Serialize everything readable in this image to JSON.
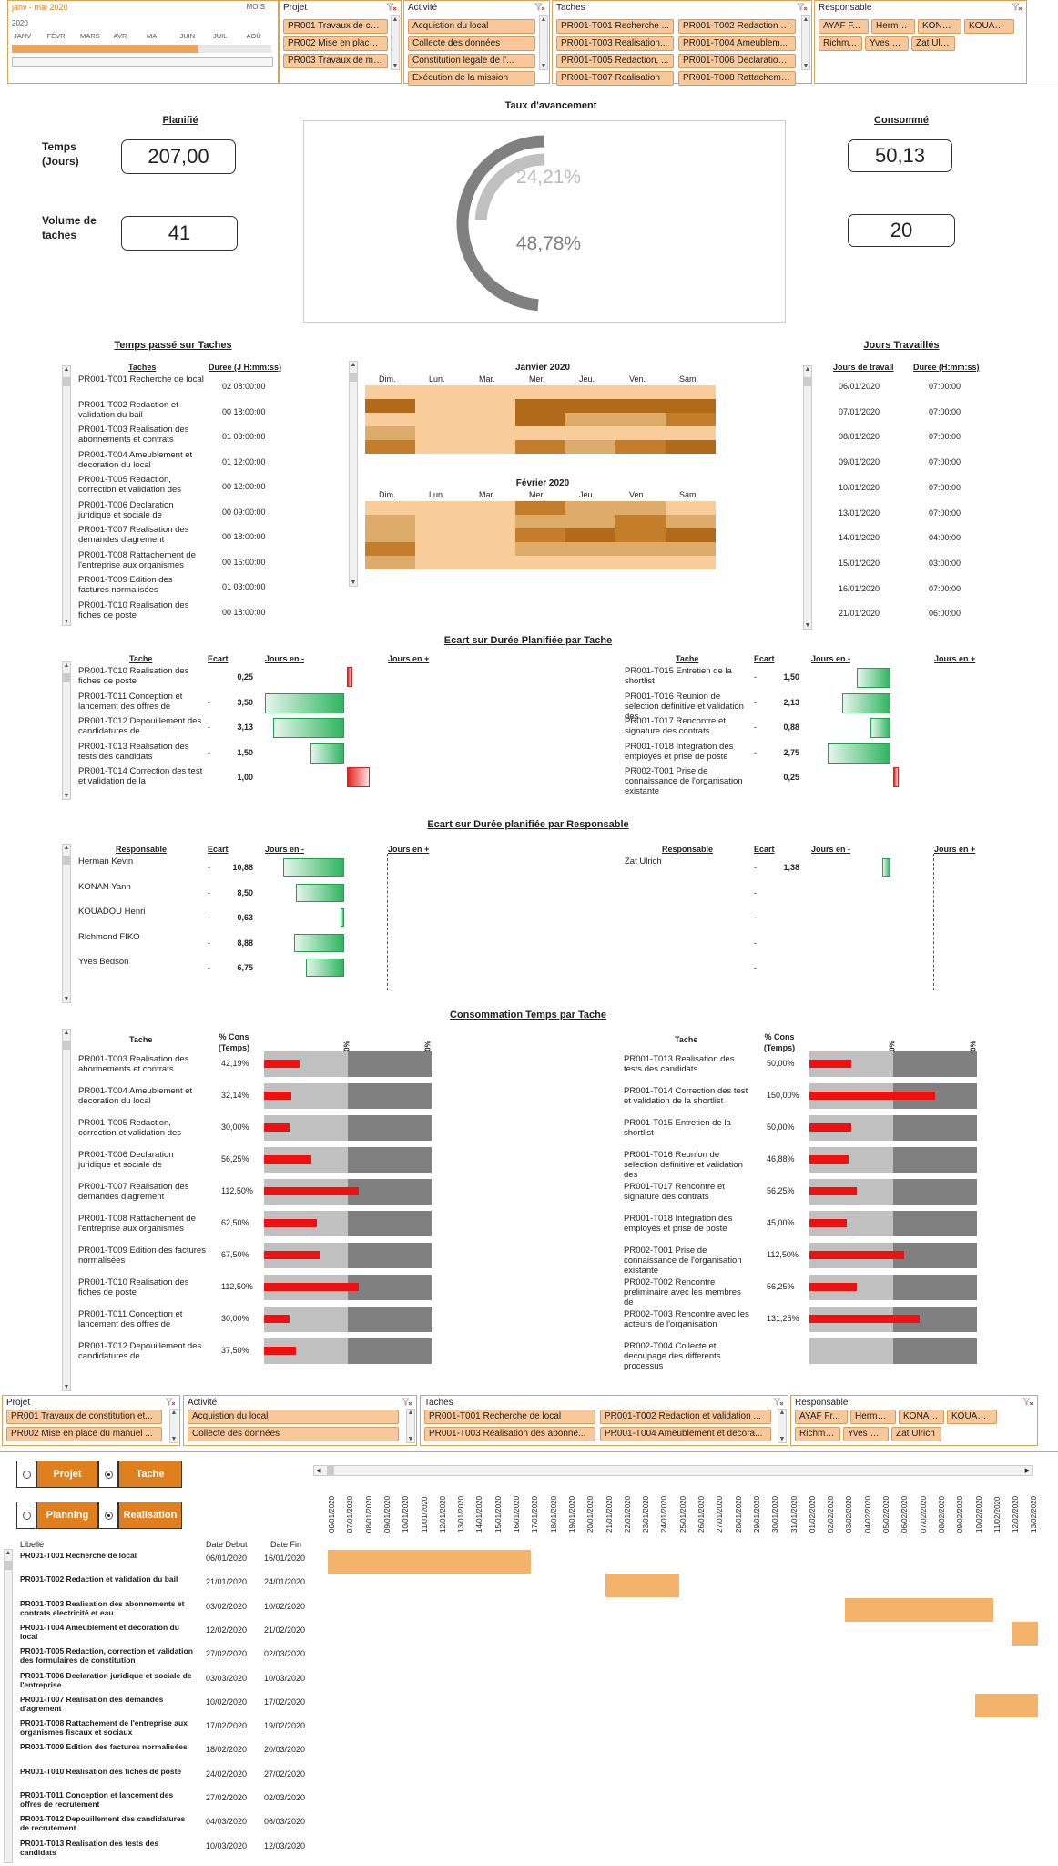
{
  "top_slicers": {
    "date": {
      "title": "janv - mai 2020",
      "unit": "MOIS",
      "year": "2020",
      "months": [
        "JANV",
        "FÉVR",
        "MARS",
        "AVR",
        "MAI",
        "JUIN",
        "JUIL",
        "AOÛ"
      ]
    },
    "projet": {
      "title": "Projet",
      "items": [
        "PR001 Travaux de con...",
        "PR002 Mise en place ...",
        "PR003 Travaux de mis..."
      ]
    },
    "activite": {
      "title": "Activité",
      "items": [
        "Acquistion du local",
        "Collecte des données",
        "Constitution legale de l'...",
        "Exécution de la mission"
      ]
    },
    "taches": {
      "title": "Taches",
      "items": [
        "PR001-T001 Recherche ...",
        "PR001-T002 Redaction e...",
        "PR001-T003 Realisation...",
        "PR001-T004 Ameublem...",
        "PR001-T005 Redaction, ...",
        "PR001-T006 Declaration ...",
        "PR001-T007 Realisation",
        "PR001-T008 Rattacheme..."
      ]
    },
    "responsable": {
      "title": "Responsable",
      "items": [
        "AYAF F...",
        "Herma...",
        "KONAN ...",
        "KOUADO...",
        "Richm...",
        "Yves B...",
        "Zat Ulri..."
      ]
    }
  },
  "kpi": {
    "planifie_title": "Planifié",
    "consomme_title": "Consommé",
    "temps_label": "Temps (Jours)",
    "volume_label": "Volume de taches",
    "temps_planifie": "207,00",
    "volume_planifie": "41",
    "temps_consomme": "50,13",
    "volume_consomme": "20",
    "taux_title": "Taux d'avancement",
    "taux_inner": "24,21%",
    "taux_outer": "48,78%",
    "taux_inner_value": 24.21,
    "taux_outer_value": 48.78
  },
  "temps_taches": {
    "title": "Temps passé sur Taches",
    "col_tache": "Taches",
    "col_duree": "Duree (J H:mm:ss)",
    "rows": [
      {
        "t": "PR001-T001 Recherche de local",
        "d": "02 08:00:00"
      },
      {
        "t": "PR001-T002 Redaction et validation du bail",
        "d": "00 18:00:00"
      },
      {
        "t": "PR001-T003 Realisation des abonnements et contrats",
        "d": "01 03:00:00"
      },
      {
        "t": "PR001-T004 Ameublement et decoration du local",
        "d": "01 12:00:00"
      },
      {
        "t": "PR001-T005 Redaction, correction et validation des",
        "d": "00 12:00:00"
      },
      {
        "t": "PR001-T006 Declaration juridique et sociale de",
        "d": "00 09:00:00"
      },
      {
        "t": "PR001-T007 Realisation des demandes d'agrement",
        "d": "00 18:00:00"
      },
      {
        "t": "PR001-T008 Rattachement de l'entreprise aux organismes",
        "d": "00 15:00:00"
      },
      {
        "t": "PR001-T009 Edition des factures normalisées",
        "d": "01 03:00:00"
      },
      {
        "t": "PR001-T010 Realisation des fiches de poste",
        "d": "00 18:00:00"
      }
    ]
  },
  "calendar": {
    "days": [
      "Dim.",
      "Lun.",
      "Mar.",
      "Mer.",
      "Jeu.",
      "Ven.",
      "Sam."
    ],
    "months": [
      {
        "name": "Janvier 2020"
      },
      {
        "name": "Février 2020"
      }
    ]
  },
  "jours": {
    "title": "Jours Travaillés",
    "col_jour": "Jours de travail",
    "col_duree": "Duree (H:mm:ss)",
    "rows": [
      {
        "j": "06/01/2020",
        "d": "07:00:00"
      },
      {
        "j": "07/01/2020",
        "d": "07:00:00"
      },
      {
        "j": "08/01/2020",
        "d": "07:00:00"
      },
      {
        "j": "09/01/2020",
        "d": "07:00:00"
      },
      {
        "j": "10/01/2020",
        "d": "07:00:00"
      },
      {
        "j": "13/01/2020",
        "d": "07:00:00"
      },
      {
        "j": "14/01/2020",
        "d": "04:00:00"
      },
      {
        "j": "15/01/2020",
        "d": "03:00:00"
      },
      {
        "j": "16/01/2020",
        "d": "07:00:00"
      },
      {
        "j": "21/01/2020",
        "d": "06:00:00"
      }
    ]
  },
  "ecart_tache": {
    "title": "Ecart sur Durée Planifiée par Tache",
    "col_tache": "Tache",
    "col_ecart": "Ecart",
    "col_moins": "Jours en -",
    "col_plus": "Jours en +",
    "left": [
      {
        "t": "PR001-T010 Realisation des fiches de poste",
        "s": "",
        "v": "0,25",
        "n": 0.25
      },
      {
        "t": "PR001-T011 Conception et lancement des offres de",
        "s": "-",
        "v": "3,50",
        "n": -3.5
      },
      {
        "t": "PR001-T012 Depouillement des candidatures de",
        "s": "-",
        "v": "3,13",
        "n": -3.13
      },
      {
        "t": "PR001-T013 Realisation des tests des candidats",
        "s": "-",
        "v": "1,50",
        "n": -1.5
      },
      {
        "t": "PR001-T014 Correction des test et validation de la",
        "s": "",
        "v": "1,00",
        "n": 1.0
      }
    ],
    "right": [
      {
        "t": "PR001-T015 Entretien de la shortlist",
        "s": "-",
        "v": "1,50",
        "n": -1.5
      },
      {
        "t": "PR001-T016 Reunion de selection definitive et validation des",
        "s": "-",
        "v": "2,13",
        "n": -2.13
      },
      {
        "t": "PR001-T017 Rencontre et signature des contrats",
        "s": "-",
        "v": "0,88",
        "n": -0.88
      },
      {
        "t": "PR001-T018 Integration des employés et prise de poste",
        "s": "-",
        "v": "2,75",
        "n": -2.75
      },
      {
        "t": "PR002-T001 Prise de connaissance de l'organisation existante",
        "s": "",
        "v": "0,25",
        "n": 0.25
      }
    ]
  },
  "ecart_resp": {
    "title": "Ecart sur Durée planifiée par Responsable",
    "col_resp": "Responsable",
    "col_ecart": "Ecart",
    "col_moins": "Jours en -",
    "col_plus": "Jours en +",
    "left": [
      {
        "t": "Herman Kevin",
        "s": "-",
        "v": "10,88",
        "n": -10.88
      },
      {
        "t": "KONAN Yann",
        "s": "-",
        "v": "8,50",
        "n": -8.5
      },
      {
        "t": "KOUADOU Henri",
        "s": "-",
        "v": "0,63",
        "n": -0.63
      },
      {
        "t": "Richmond FIKO",
        "s": "-",
        "v": "8,88",
        "n": -8.88
      },
      {
        "t": "Yves Bedson",
        "s": "-",
        "v": "6,75",
        "n": -6.75
      }
    ],
    "right": [
      {
        "t": "Zat Ulrich",
        "s": "-",
        "v": "1,38",
        "n": -1.38
      },
      {
        "t": "",
        "s": "-",
        "v": "",
        "n": 0
      },
      {
        "t": "",
        "s": "-",
        "v": "",
        "n": 0
      },
      {
        "t": "",
        "s": "-",
        "v": "",
        "n": 0
      },
      {
        "t": "",
        "s": "-",
        "v": "",
        "n": 0
      }
    ]
  },
  "consommation": {
    "title": "Consommation Temps  par Tache",
    "col_tache": "Tache",
    "col_pct": "% Cons (Temps)",
    "mark100": "100%",
    "mark200": "200%",
    "left": [
      {
        "t": "PR001-T003 Realisation des abonnements et contrats",
        "v": "42,19%",
        "n": 42.19
      },
      {
        "t": "PR001-T004 Ameublement et decoration du local",
        "v": "32,14%",
        "n": 32.14
      },
      {
        "t": "PR001-T005 Redaction, correction et validation des",
        "v": "30,00%",
        "n": 30
      },
      {
        "t": "PR001-T006 Declaration juridique et sociale de",
        "v": "56,25%",
        "n": 56.25
      },
      {
        "t": "PR001-T007 Realisation des demandes d'agrement",
        "v": "112,50%",
        "n": 112.5
      },
      {
        "t": "PR001-T008 Rattachement de l'entreprise aux organismes",
        "v": "62,50%",
        "n": 62.5
      },
      {
        "t": "PR001-T009 Edition des factures normalisées",
        "v": "67,50%",
        "n": 67.5
      },
      {
        "t": "PR001-T010 Realisation des fiches de poste",
        "v": "112,50%",
        "n": 112.5
      },
      {
        "t": "PR001-T011 Conception et lancement des offres de",
        "v": "30,00%",
        "n": 30
      },
      {
        "t": "PR001-T012 Depouillement des candidatures de",
        "v": "37,50%",
        "n": 37.5
      }
    ],
    "right": [
      {
        "t": "PR001-T013 Realisation des tests des candidats",
        "v": "50,00%",
        "n": 50
      },
      {
        "t": "PR001-T014 Correction des test et validation de la shortlist",
        "v": "150,00%",
        "n": 150
      },
      {
        "t": "PR001-T015 Entretien de la shortlist",
        "v": "50,00%",
        "n": 50
      },
      {
        "t": "PR001-T016 Reunion de selection definitive et validation des",
        "v": "46,88%",
        "n": 46.88
      },
      {
        "t": "PR001-T017 Rencontre et signature des contrats",
        "v": "56,25%",
        "n": 56.25
      },
      {
        "t": "PR001-T018 Integration des employés et prise de poste",
        "v": "45,00%",
        "n": 45
      },
      {
        "t": "PR002-T001 Prise de connaissance de l'organisation existante",
        "v": "112,50%",
        "n": 112.5
      },
      {
        "t": "PR002-T002 Rencontre preliminaire avec les membres de",
        "v": "56,25%",
        "n": 56.25
      },
      {
        "t": "PR002-T003 Rencontre avec les acteurs de l'organisation",
        "v": "131,25%",
        "n": 131.25
      },
      {
        "t": "PR002-T004 Collecte et decoupage des differents processus",
        "v": "",
        "n": 0
      }
    ]
  },
  "bottom_slicers": {
    "projet": {
      "title": "Projet",
      "items": [
        "PR001 Travaux de constitution et...",
        "PR002 Mise en place du manuel ..."
      ]
    },
    "activite": {
      "title": "Activité",
      "items": [
        "Acquistion du local",
        "Collecte des données"
      ]
    },
    "taches": {
      "title": "Taches",
      "items": [
        "PR001-T001 Recherche de local",
        "PR001-T002 Redaction et validation ...",
        "PR001-T003 Realisation des abonne...",
        "PR001-T004 Ameublement et decora..."
      ]
    },
    "responsable": {
      "title": "Responsable",
      "items": [
        "AYAF Fr...",
        "Herman...",
        "KONAN ...",
        "KOUADO...",
        "Richmo...",
        "Yves Be...",
        "Zat Ulrich"
      ]
    }
  },
  "gantt": {
    "btn_projet": "Projet",
    "btn_tache": "Tache",
    "btn_planning": "Planning",
    "btn_realisation": "Realisation",
    "col_libelle": "Libellé",
    "col_debut": "Date Debut",
    "col_fin": "Date Fin",
    "dates": [
      "06/01/2020",
      "07/01/2020",
      "08/01/2020",
      "09/01/2020",
      "10/01/2020",
      "11/01/2020",
      "12/01/2020",
      "13/01/2020",
      "14/01/2020",
      "15/01/2020",
      "16/01/2020",
      "17/01/2020",
      "18/01/2020",
      "19/01/2020",
      "20/01/2020",
      "21/01/2020",
      "22/01/2020",
      "23/01/2020",
      "24/01/2020",
      "25/01/2020",
      "26/01/2020",
      "27/01/2020",
      "28/01/2020",
      "29/01/2020",
      "30/01/2020",
      "31/01/2020",
      "01/02/2020",
      "02/02/2020",
      "03/02/2020",
      "04/02/2020",
      "05/02/2020",
      "06/02/2020",
      "07/02/2020",
      "08/02/2020",
      "09/02/2020",
      "10/02/2020",
      "11/02/2020",
      "12/02/2020",
      "13/02/2020"
    ],
    "rows": [
      {
        "l": "PR001-T001 Recherche de local",
        "d": "06/01/2020",
        "f": "16/01/2020",
        "bs": 0,
        "be": 11
      },
      {
        "l": "PR001-T002 Redaction et validation du bail",
        "d": "21/01/2020",
        "f": "24/01/2020",
        "bs": 15,
        "be": 19
      },
      {
        "l": "PR001-T003 Realisation des abonnements et contrats electricité et eau",
        "d": "03/02/2020",
        "f": "10/02/2020",
        "bs": 28,
        "be": 36
      },
      {
        "l": "PR001-T004 Ameublement et decoration du local",
        "d": "12/02/2020",
        "f": "21/02/2020",
        "bs": 37,
        "be": 39
      },
      {
        "l": "PR001-T005 Redaction, correction et validation des formulaires de constitution",
        "d": "27/02/2020",
        "f": "02/03/2020",
        "bs": -1,
        "be": -1
      },
      {
        "l": "PR001-T006 Declaration juridique et sociale de l'entreprise",
        "d": "03/03/2020",
        "f": "10/03/2020",
        "bs": -1,
        "be": -1
      },
      {
        "l": "PR001-T007 Realisation des demandes d'agrement",
        "d": "10/02/2020",
        "f": "17/02/2020",
        "bs": 35,
        "be": 39
      },
      {
        "l": "PR001-T008 Rattachement de l'entreprise aux organismes fiscaux et sociaux",
        "d": "17/02/2020",
        "f": "19/02/2020",
        "bs": -1,
        "be": -1
      },
      {
        "l": "PR001-T009 Edition des factures normalisées",
        "d": "18/02/2020",
        "f": "20/03/2020",
        "bs": -1,
        "be": -1
      },
      {
        "l": "PR001-T010 Realisation des fiches de poste",
        "d": "24/02/2020",
        "f": "27/02/2020",
        "bs": -1,
        "be": -1
      },
      {
        "l": "PR001-T011 Conception et lancement des offres de recrutement",
        "d": "27/02/2020",
        "f": "02/03/2020",
        "bs": -1,
        "be": -1
      },
      {
        "l": "PR001-T012 Depouillement des candidatures de recrutement",
        "d": "04/03/2020",
        "f": "06/03/2020",
        "bs": -1,
        "be": -1
      },
      {
        "l": "PR001-T013 Realisation des tests des candidats",
        "d": "10/03/2020",
        "f": "12/03/2020",
        "bs": -1,
        "be": -1
      }
    ]
  },
  "colors": {
    "accent": "#e07f1d",
    "chip": "#f8c89a",
    "green": "#2eb55f",
    "red": "#e82020",
    "gray_light": "#c0c0c0",
    "gray_dark": "#808080",
    "gantt": "#f4b36a"
  }
}
